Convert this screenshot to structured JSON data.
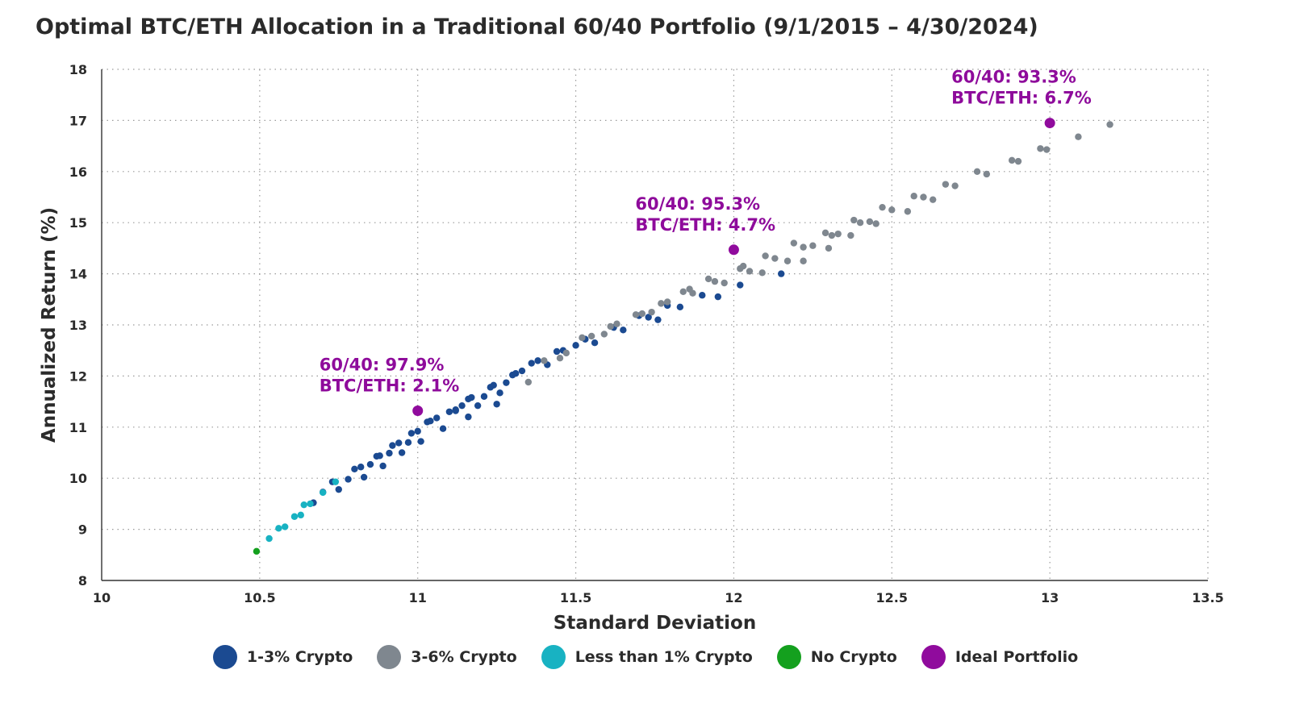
{
  "title": "Optimal BTC/ETH Allocation in a Traditional 60/40 Portfolio (9/1/2015 – 4/30/2024)",
  "colors": {
    "crypto_1_3": "#1b4a91",
    "crypto_3_6": "#7f878f",
    "crypto_lt1": "#18b2c2",
    "no_crypto": "#14a01e",
    "ideal": "#900b9d"
  },
  "chart_data": {
    "type": "scatter",
    "xlabel": "Standard Deviation",
    "ylabel": "Annualized Return (%)",
    "xlim": [
      10,
      13.5
    ],
    "ylim": [
      8,
      18
    ],
    "x_ticks": [
      10,
      10.5,
      11,
      11.5,
      12,
      12.5,
      13,
      13.5
    ],
    "y_ticks": [
      8,
      9,
      10,
      11,
      12,
      13,
      14,
      15,
      16,
      17,
      18
    ],
    "x_tick_labels": [
      "10",
      "10.5",
      "11",
      "11.5",
      "12",
      "12.5",
      "13",
      "13.5"
    ],
    "y_tick_labels": [
      "8",
      "9",
      "10",
      "11",
      "12",
      "13",
      "14",
      "15",
      "16",
      "17",
      "18"
    ],
    "grid": true,
    "legend_position": "bottom",
    "series": [
      {
        "name": "1-3% Crypto",
        "color_key": "crypto_1_3",
        "points": [
          [
            10.67,
            9.52
          ],
          [
            10.7,
            9.73
          ],
          [
            10.73,
            9.93
          ],
          [
            10.75,
            9.78
          ],
          [
            10.78,
            9.98
          ],
          [
            10.8,
            10.18
          ],
          [
            10.82,
            10.22
          ],
          [
            10.83,
            10.02
          ],
          [
            10.85,
            10.27
          ],
          [
            10.87,
            10.43
          ],
          [
            10.88,
            10.44
          ],
          [
            10.89,
            10.24
          ],
          [
            10.91,
            10.49
          ],
          [
            10.92,
            10.64
          ],
          [
            10.94,
            10.69
          ],
          [
            10.95,
            10.5
          ],
          [
            10.97,
            10.7
          ],
          [
            10.98,
            10.88
          ],
          [
            11,
            10.92
          ],
          [
            11.01,
            10.72
          ],
          [
            11.03,
            11.1
          ],
          [
            11.04,
            11.12
          ],
          [
            11.06,
            11.18
          ],
          [
            11.08,
            10.97
          ],
          [
            11.1,
            11.3
          ],
          [
            11.12,
            11.34
          ],
          [
            11.12,
            11.32
          ],
          [
            11.14,
            11.42
          ],
          [
            11.16,
            11.55
          ],
          [
            11.17,
            11.58
          ],
          [
            11.16,
            11.2
          ],
          [
            11.19,
            11.42
          ],
          [
            11.21,
            11.6
          ],
          [
            11.23,
            11.78
          ],
          [
            11.24,
            11.82
          ],
          [
            11.25,
            11.45
          ],
          [
            11.26,
            11.67
          ],
          [
            11.28,
            11.87
          ],
          [
            11.3,
            12.02
          ],
          [
            11.31,
            12.05
          ],
          [
            11.33,
            12.1
          ],
          [
            11.36,
            12.25
          ],
          [
            11.38,
            12.3
          ],
          [
            11.41,
            12.22
          ],
          [
            11.44,
            12.48
          ],
          [
            11.46,
            12.5
          ],
          [
            11.5,
            12.6
          ],
          [
            11.53,
            12.72
          ],
          [
            11.56,
            12.65
          ],
          [
            11.62,
            12.95
          ],
          [
            11.65,
            12.9
          ],
          [
            11.7,
            13.18
          ],
          [
            11.73,
            13.15
          ],
          [
            11.76,
            13.1
          ],
          [
            11.79,
            13.38
          ],
          [
            11.83,
            13.35
          ],
          [
            11.9,
            13.58
          ],
          [
            11.95,
            13.55
          ],
          [
            12.02,
            13.78
          ],
          [
            12.15,
            14.0
          ]
        ]
      },
      {
        "name": "3-6% Crypto",
        "color_key": "crypto_3_6",
        "points": [
          [
            11.35,
            11.88
          ],
          [
            11.4,
            12.3
          ],
          [
            11.45,
            12.35
          ],
          [
            11.47,
            12.45
          ],
          [
            11.52,
            12.75
          ],
          [
            11.55,
            12.78
          ],
          [
            11.59,
            12.82
          ],
          [
            11.61,
            12.97
          ],
          [
            11.63,
            13.02
          ],
          [
            11.69,
            13.2
          ],
          [
            11.71,
            13.22
          ],
          [
            11.74,
            13.25
          ],
          [
            11.77,
            13.42
          ],
          [
            11.79,
            13.45
          ],
          [
            11.84,
            13.65
          ],
          [
            11.86,
            13.7
          ],
          [
            11.87,
            13.62
          ],
          [
            11.92,
            13.9
          ],
          [
            11.94,
            13.85
          ],
          [
            11.97,
            13.82
          ],
          [
            12.02,
            14.1
          ],
          [
            12.03,
            14.15
          ],
          [
            12.05,
            14.05
          ],
          [
            12.09,
            14.02
          ],
          [
            12.1,
            14.35
          ],
          [
            12.13,
            14.3
          ],
          [
            12.17,
            14.25
          ],
          [
            12.19,
            14.6
          ],
          [
            12.22,
            14.52
          ],
          [
            12.25,
            14.55
          ],
          [
            12.22,
            14.25
          ],
          [
            12.29,
            14.8
          ],
          [
            12.31,
            14.75
          ],
          [
            12.33,
            14.78
          ],
          [
            12.3,
            14.5
          ],
          [
            12.38,
            15.05
          ],
          [
            12.4,
            15.0
          ],
          [
            12.43,
            15.02
          ],
          [
            12.45,
            14.98
          ],
          [
            12.37,
            14.75
          ],
          [
            12.47,
            15.3
          ],
          [
            12.5,
            15.25
          ],
          [
            12.55,
            15.22
          ],
          [
            12.57,
            15.52
          ],
          [
            12.6,
            15.5
          ],
          [
            12.63,
            15.45
          ],
          [
            12.67,
            15.75
          ],
          [
            12.7,
            15.72
          ],
          [
            12.77,
            16.0
          ],
          [
            12.8,
            15.95
          ],
          [
            12.88,
            16.22
          ],
          [
            12.9,
            16.2
          ],
          [
            12.97,
            16.45
          ],
          [
            12.99,
            16.43
          ],
          [
            13.09,
            16.68
          ],
          [
            13.19,
            16.92
          ]
        ]
      },
      {
        "name": "Less than 1% Crypto",
        "color_key": "crypto_lt1",
        "points": [
          [
            10.53,
            8.82
          ],
          [
            10.56,
            9.02
          ],
          [
            10.58,
            9.05
          ],
          [
            10.61,
            9.25
          ],
          [
            10.63,
            9.28
          ],
          [
            10.64,
            9.48
          ],
          [
            10.66,
            9.5
          ],
          [
            10.7,
            9.72
          ],
          [
            10.74,
            9.93
          ]
        ]
      },
      {
        "name": "No Crypto",
        "color_key": "no_crypto",
        "points": [
          [
            10.49,
            8.57
          ]
        ]
      },
      {
        "name": "Ideal Portfolio",
        "color_key": "ideal",
        "points": [
          [
            11.0,
            11.32
          ],
          [
            12.0,
            14.47
          ],
          [
            13.0,
            16.95
          ]
        ]
      }
    ],
    "annotations": [
      {
        "x": 11.0,
        "y": 11.32,
        "line1": "60/40: 97.9%",
        "line2": "BTC/ETH: 2.1%"
      },
      {
        "x": 12.0,
        "y": 14.47,
        "line1": "60/40: 95.3%",
        "line2": "BTC/ETH: 4.7%"
      },
      {
        "x": 13.0,
        "y": 16.95,
        "line1": "60/40: 93.3%",
        "line2": "BTC/ETH: 6.7%"
      }
    ]
  }
}
